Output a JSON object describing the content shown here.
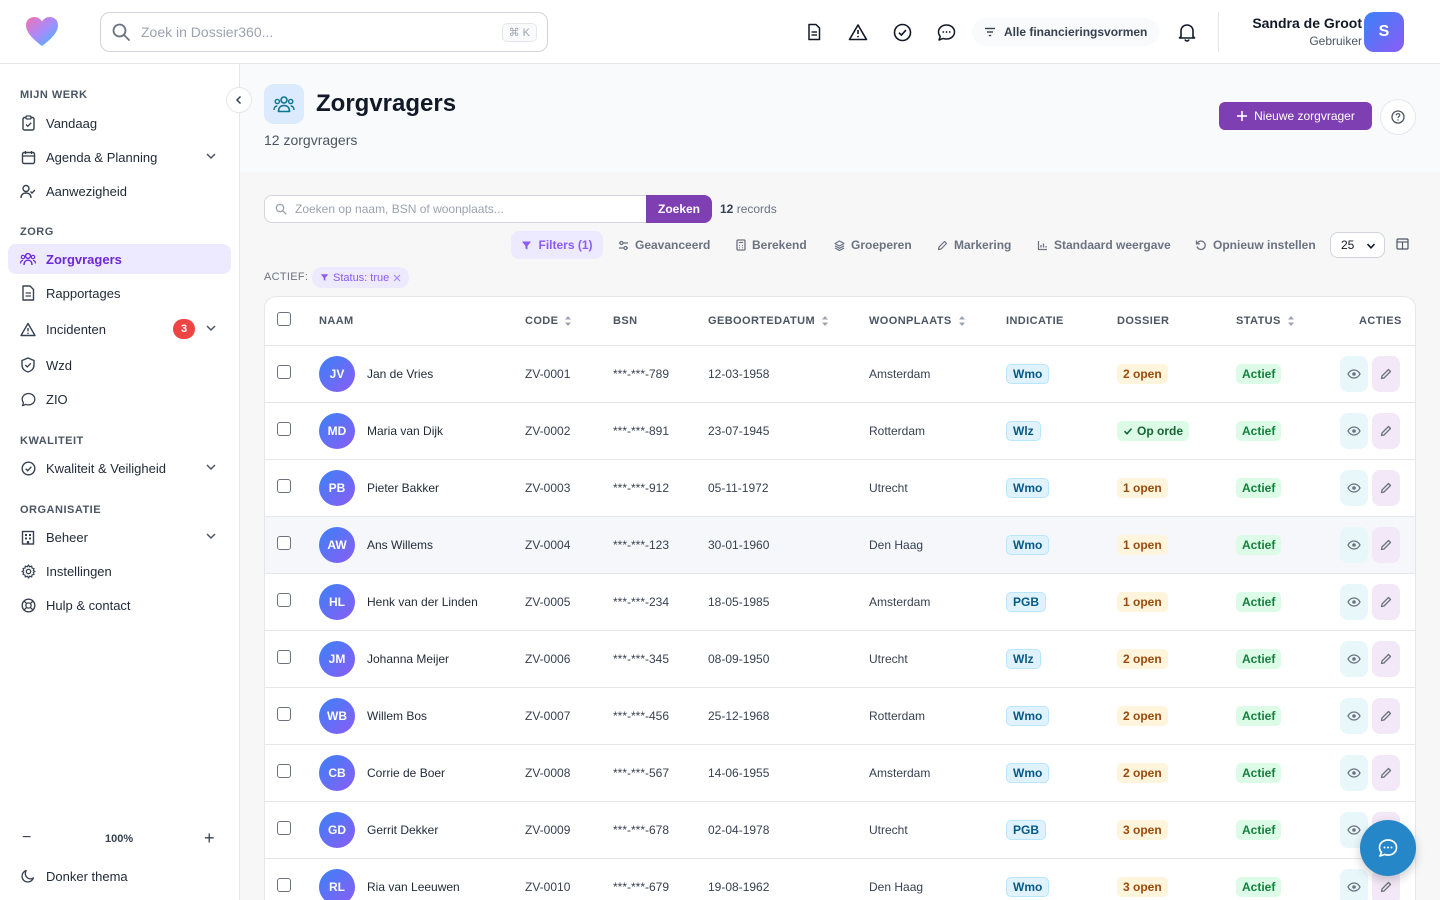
{
  "header": {
    "search_placeholder": "Zoek in Dossier360...",
    "search_shortcut": "⌘ K",
    "funding_filter": "Alle financieringsvormen",
    "user_name": "Sandra de Groot",
    "user_role": "Gebruiker",
    "user_initial": "S"
  },
  "sidebar": {
    "sections": [
      "MIJN WERK",
      "ZORG",
      "KWALITEIT",
      "ORGANISATIE"
    ],
    "items": [
      {
        "label": "Vandaag",
        "icon": "clipboard-icon"
      },
      {
        "label": "Agenda & Planning",
        "icon": "calendar-icon"
      },
      {
        "label": "Aanwezigheid",
        "icon": "user-check-icon"
      },
      {
        "label": "Zorgvragers",
        "icon": "users-icon"
      },
      {
        "label": "Rapportages",
        "icon": "document-icon"
      },
      {
        "label": "Incidenten",
        "icon": "warning-icon",
        "badge": "3"
      },
      {
        "label": "Wzd",
        "icon": "shield-icon"
      },
      {
        "label": "ZIO",
        "icon": "chat-icon"
      },
      {
        "label": "Kwaliteit & Veiligheid",
        "icon": "check-circle-icon"
      },
      {
        "label": "Beheer",
        "icon": "building-icon"
      },
      {
        "label": "Instellingen",
        "icon": "gear-icon"
      },
      {
        "label": "Hulp & contact",
        "icon": "lifebuoy-icon"
      }
    ],
    "zoom": "100%",
    "zoom_minus": "−",
    "zoom_plus": "+",
    "theme_label": "Donker thema"
  },
  "page": {
    "title": "Zorgvragers",
    "subtitle": "12 zorgvragers",
    "new_button": "Nieuwe zorgvrager",
    "search_placeholder": "Zoeken op naam, BSN of woonplaats...",
    "search_button": "Zoeken",
    "record_count": "12",
    "record_label": "records",
    "toolbar": {
      "filters": "Filters (1)",
      "advanced": "Geavanceerd",
      "computed": "Berekend",
      "group": "Groeperen",
      "mark": "Markering",
      "default_view": "Standaard weergave",
      "reset": "Opnieuw instellen",
      "page_size": "25"
    },
    "active_label": "ACTIEF:",
    "active_chip": "Status: true"
  },
  "table": {
    "columns": [
      "NAAM",
      "CODE",
      "BSN",
      "GEBOORTEDATUM",
      "WOONPLAATS",
      "INDICATIE",
      "DOSSIER",
      "STATUS",
      "ACTIES"
    ],
    "rows": [
      {
        "initials": "JV",
        "name": "Jan de Vries",
        "code": "ZV-0001",
        "bsn": "***-***-789",
        "dob": "12-03-1958",
        "city": "Amsterdam",
        "indicatie": "Wmo",
        "dossier": "2 open",
        "status": "Actief"
      },
      {
        "initials": "MD",
        "name": "Maria van Dijk",
        "code": "ZV-0002",
        "bsn": "***-***-891",
        "dob": "23-07-1945",
        "city": "Rotterdam",
        "indicatie": "Wlz",
        "dossier": "Op orde",
        "status": "Actief"
      },
      {
        "initials": "PB",
        "name": "Pieter Bakker",
        "code": "ZV-0003",
        "bsn": "***-***-912",
        "dob": "05-11-1972",
        "city": "Utrecht",
        "indicatie": "Wmo",
        "dossier": "1 open",
        "status": "Actief"
      },
      {
        "initials": "AW",
        "name": "Ans Willems",
        "code": "ZV-0004",
        "bsn": "***-***-123",
        "dob": "30-01-1960",
        "city": "Den Haag",
        "indicatie": "Wmo",
        "dossier": "1 open",
        "status": "Actief"
      },
      {
        "initials": "HL",
        "name": "Henk van der Linden",
        "code": "ZV-0005",
        "bsn": "***-***-234",
        "dob": "18-05-1985",
        "city": "Amsterdam",
        "indicatie": "PGB",
        "dossier": "1 open",
        "status": "Actief"
      },
      {
        "initials": "JM",
        "name": "Johanna Meijer",
        "code": "ZV-0006",
        "bsn": "***-***-345",
        "dob": "08-09-1950",
        "city": "Utrecht",
        "indicatie": "Wlz",
        "dossier": "2 open",
        "status": "Actief"
      },
      {
        "initials": "WB",
        "name": "Willem Bos",
        "code": "ZV-0007",
        "bsn": "***-***-456",
        "dob": "25-12-1968",
        "city": "Rotterdam",
        "indicatie": "Wmo",
        "dossier": "2 open",
        "status": "Actief"
      },
      {
        "initials": "CB",
        "name": "Corrie de Boer",
        "code": "ZV-0008",
        "bsn": "***-***-567",
        "dob": "14-06-1955",
        "city": "Amsterdam",
        "indicatie": "Wmo",
        "dossier": "2 open",
        "status": "Actief"
      },
      {
        "initials": "GD",
        "name": "Gerrit Dekker",
        "code": "ZV-0009",
        "bsn": "***-***-678",
        "dob": "02-04-1978",
        "city": "Utrecht",
        "indicatie": "PGB",
        "dossier": "3 open",
        "status": "Actief"
      },
      {
        "initials": "RL",
        "name": "Ria van Leeuwen",
        "code": "ZV-0010",
        "bsn": "***-***-679",
        "dob": "19-08-1962",
        "city": "Den Haag",
        "indicatie": "Wmo",
        "dossier": "3 open",
        "status": "Actief"
      }
    ]
  },
  "colors": {
    "accent": "#7e3fb3",
    "active_nav": "#6d28d9",
    "badge": "#ef4444",
    "fab": "#2586c8"
  }
}
